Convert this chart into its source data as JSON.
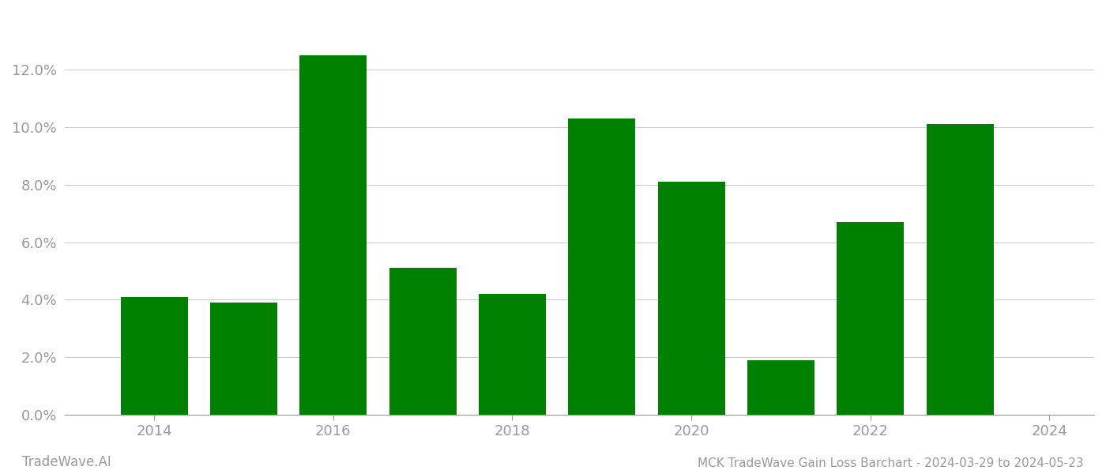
{
  "years": [
    2014,
    2015,
    2016,
    2017,
    2018,
    2019,
    2020,
    2021,
    2022,
    2023
  ],
  "values": [
    0.041,
    0.039,
    0.125,
    0.051,
    0.042,
    0.103,
    0.081,
    0.019,
    0.067,
    0.101
  ],
  "bar_color": "#008000",
  "title": "MCK TradeWave Gain Loss Barchart - 2024-03-29 to 2024-05-23",
  "watermark": "TradeWave.AI",
  "ylim": [
    0,
    0.14
  ],
  "yticks": [
    0.0,
    0.02,
    0.04,
    0.06,
    0.08,
    0.1,
    0.12
  ],
  "xtick_labels": [
    "2014",
    "2016",
    "2018",
    "2020",
    "2022",
    "2024"
  ],
  "xtick_positions": [
    2014,
    2016,
    2018,
    2020,
    2022,
    2024
  ],
  "xlim": [
    2013.0,
    2024.5
  ],
  "background_color": "#ffffff",
  "grid_color": "#cccccc",
  "tick_color": "#999999",
  "title_fontsize": 11,
  "watermark_fontsize": 12,
  "bar_width": 0.75
}
